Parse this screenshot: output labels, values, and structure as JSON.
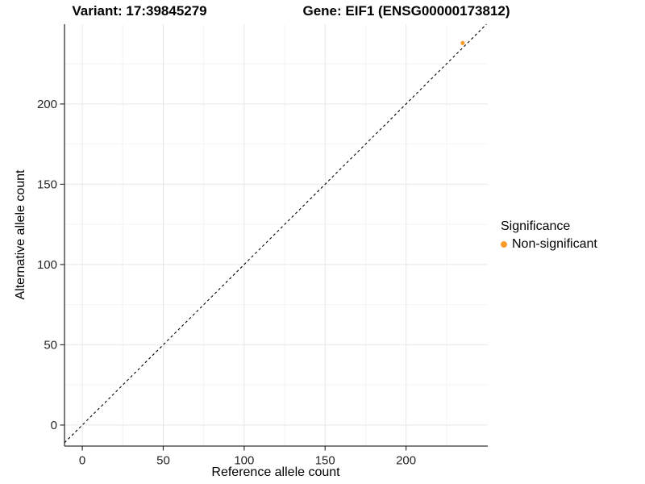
{
  "chart_data": {
    "type": "scatter",
    "title_left": "Variant: 17:39845279",
    "title_right": "Gene: EIF1 (ENSG00000173812)",
    "xlabel": "Reference allele count",
    "ylabel": "Alternative allele count",
    "x_ticks": [
      0,
      50,
      100,
      150,
      200
    ],
    "y_ticks": [
      0,
      50,
      100,
      150,
      200
    ],
    "x_minor_ticks": [
      25,
      75,
      125,
      175,
      225
    ],
    "y_minor_ticks": [
      25,
      75,
      125,
      175,
      225
    ],
    "xlim": [
      -11,
      250.5
    ],
    "ylim": [
      -13.1,
      249.7
    ],
    "grid": true,
    "grid_major_color": "#e8e8e8",
    "grid_minor_color": "#f4f4f4",
    "axis_color": "#333333",
    "tick_label_color": "#262626",
    "identity_line": {
      "slope": 1,
      "intercept": 0,
      "style": "dashed",
      "color": "#000000"
    },
    "series": [
      {
        "name": "Non-significant",
        "color": "#FA9C28",
        "points": [
          {
            "x": 235,
            "y": 238
          }
        ]
      }
    ],
    "legend": {
      "title": "Significance",
      "position": "right",
      "entries": [
        {
          "label": "Non-significant",
          "color": "#FA9C28"
        }
      ]
    }
  }
}
